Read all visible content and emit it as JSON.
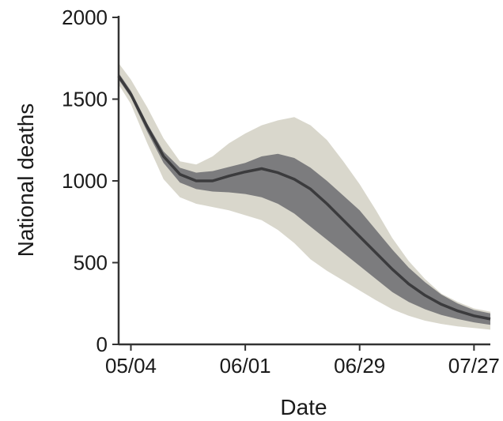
{
  "chart_data": {
    "type": "area",
    "xlabel": "Date",
    "ylabel": "National deaths",
    "x_type": "date",
    "xlim": [
      "05/01",
      "07/31"
    ],
    "ylim": [
      0,
      2000
    ],
    "x_ticks": [
      "05/04",
      "06/01",
      "06/29",
      "07/27"
    ],
    "y_ticks": [
      0,
      500,
      1000,
      1500,
      2000
    ],
    "grid": false,
    "legend": "none",
    "colors": {
      "outer_band": "#d9d7cc",
      "inner_band": "#7c7c7e",
      "median_line": "#3b3b3d",
      "axis": "#333333"
    },
    "series": [
      {
        "x": [
          "05/01",
          "05/04",
          "05/08",
          "05/12",
          "05/16",
          "05/20",
          "05/24",
          "05/28",
          "06/01",
          "06/05",
          "06/09",
          "06/13",
          "06/17",
          "06/21",
          "06/25",
          "06/29",
          "07/03",
          "07/07",
          "07/11",
          "07/15",
          "07/19",
          "07/23",
          "07/27",
          "07/31"
        ],
        "median": [
          1640,
          1530,
          1330,
          1150,
          1040,
          1000,
          1000,
          1030,
          1055,
          1075,
          1050,
          1010,
          950,
          860,
          760,
          660,
          560,
          460,
          370,
          300,
          245,
          205,
          175,
          155
        ],
        "inner_lower": [
          1620,
          1510,
          1300,
          1110,
          990,
          950,
          935,
          930,
          920,
          900,
          860,
          800,
          720,
          640,
          560,
          480,
          400,
          320,
          260,
          215,
          180,
          155,
          135,
          120
        ],
        "inner_upper": [
          1660,
          1550,
          1350,
          1180,
          1080,
          1050,
          1060,
          1085,
          1110,
          1150,
          1165,
          1140,
          1080,
          1000,
          910,
          820,
          700,
          580,
          470,
          380,
          305,
          250,
          210,
          190
        ],
        "outer_lower": [
          1590,
          1470,
          1230,
          1010,
          900,
          860,
          840,
          820,
          790,
          760,
          700,
          620,
          520,
          450,
          390,
          330,
          270,
          215,
          175,
          145,
          125,
          110,
          100,
          90
        ],
        "outer_upper": [
          1720,
          1620,
          1450,
          1260,
          1120,
          1100,
          1150,
          1230,
          1290,
          1340,
          1370,
          1390,
          1340,
          1250,
          1120,
          980,
          820,
          650,
          510,
          400,
          310,
          260,
          220,
          200
        ]
      }
    ]
  }
}
